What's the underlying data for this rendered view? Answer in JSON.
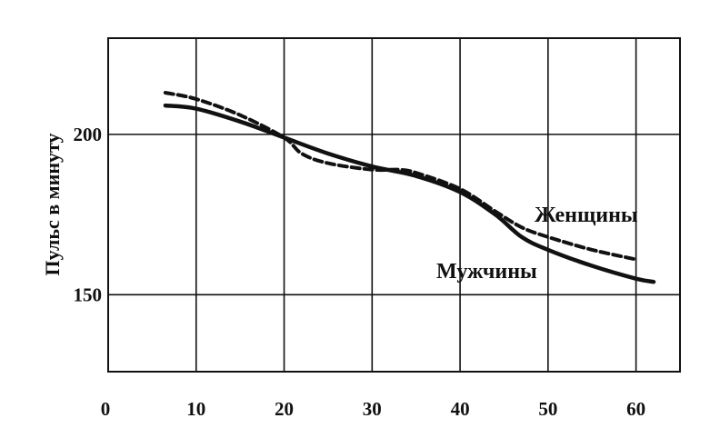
{
  "chart_data": {
    "type": "line",
    "title": "",
    "xlabel": "",
    "ylabel": "Пульс в минуту",
    "xlim": [
      0,
      65
    ],
    "ylim": [
      126,
      230
    ],
    "grid": true,
    "x_ticks": [
      {
        "value": 0,
        "label": "0"
      },
      {
        "value": 10,
        "label": "10"
      },
      {
        "value": 20,
        "label": "20"
      },
      {
        "value": 30,
        "label": "30"
      },
      {
        "value": 40,
        "label": "40"
      },
      {
        "value": 50,
        "label": "50"
      },
      {
        "value": 60,
        "label": "60"
      }
    ],
    "y_ticks": [
      {
        "value": 150,
        "label": "150"
      },
      {
        "value": 200,
        "label": "200"
      }
    ],
    "series": [
      {
        "name": "Женщины",
        "style": "dashed",
        "color": "#111111",
        "x": [
          6.5,
          10,
          15,
          20,
          22,
          25,
          30,
          33,
          35,
          40,
          44,
          47,
          50,
          55,
          60
        ],
        "y": [
          213,
          211,
          206,
          199,
          194,
          191,
          189,
          189,
          188,
          183,
          176,
          171,
          168,
          164,
          161
        ]
      },
      {
        "name": "Мужчины",
        "style": "solid",
        "color": "#111111",
        "x": [
          6.5,
          10,
          15,
          20,
          25,
          30,
          35,
          40,
          44,
          47,
          50,
          55,
          60,
          62
        ],
        "y": [
          209,
          208,
          204,
          199,
          194,
          190,
          187,
          182,
          175,
          168,
          164,
          159,
          155,
          154
        ]
      }
    ]
  }
}
